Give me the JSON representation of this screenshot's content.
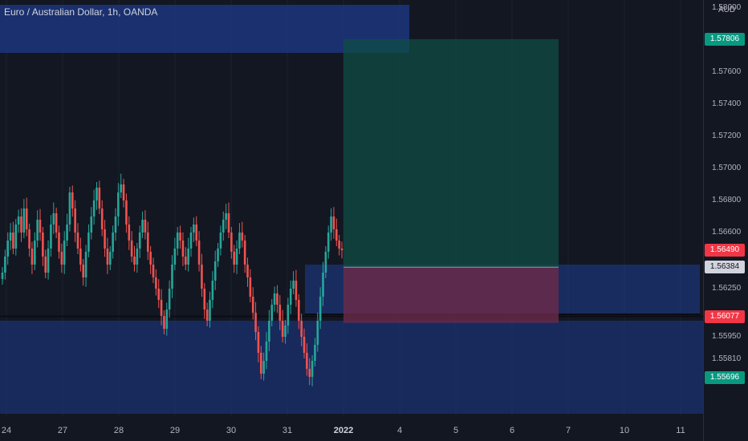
{
  "header": {
    "title": "Euro / Australian Dollar, 1h, OANDA"
  },
  "axis": {
    "unit": "AUD",
    "y_ticks": [
      "1.58000",
      "1.57600",
      "1.57400",
      "1.57200",
      "1.57000",
      "1.56800",
      "1.56600",
      "1.56250",
      "1.55950",
      "1.55810",
      "1.55696"
    ],
    "x_ticks": [
      "24",
      "27",
      "28",
      "29",
      "30",
      "31",
      "2022",
      "4",
      "5",
      "6",
      "7",
      "10",
      "11"
    ]
  },
  "price_labels": {
    "target": {
      "value": "1.57806",
      "color": "#089981"
    },
    "current": {
      "value": "1.56490",
      "color": "#f23645"
    },
    "entry": {
      "value": "1.56384",
      "color": "#d1d4dc"
    },
    "stop": {
      "value": "1.56077",
      "color": "#f23645"
    },
    "low": {
      "value": "1.55696",
      "color": "#089981"
    }
  },
  "colors": {
    "up": "#26a69a",
    "down": "#ef5350",
    "zone": "#1e3a8a",
    "profit": "#0f4c44",
    "loss": "#6b2a48"
  },
  "chart_data": {
    "type": "candlestick",
    "symbol": "EURAUD",
    "interval": "1h",
    "y_range": [
      1.5545,
      1.5805
    ],
    "price_levels": {
      "target": 1.57806,
      "current": 1.5649,
      "entry": 1.56384,
      "stop": 1.56077,
      "low": 1.55696
    },
    "zones": [
      {
        "kind": "supply",
        "y_top": 1.5802,
        "y_bottom": 1.5772
      },
      {
        "kind": "demand",
        "y_top": 1.564,
        "y_bottom": 1.5609
      },
      {
        "kind": "demand",
        "y_top": 1.5605,
        "y_bottom": 1.5547
      }
    ],
    "closes": [
      1.5635,
      1.5645,
      1.5655,
      1.566,
      1.565,
      1.5665,
      1.567,
      1.566,
      1.5675,
      1.5662,
      1.565,
      1.564,
      1.5655,
      1.5668,
      1.566,
      1.5645,
      1.5635,
      1.565,
      1.5665,
      1.5672,
      1.566,
      1.5648,
      1.564,
      1.5655,
      1.5665,
      1.5685,
      1.5675,
      1.566,
      1.565,
      1.564,
      1.5632,
      1.5648,
      1.566,
      1.567,
      1.568,
      1.5688,
      1.5675,
      1.5662,
      1.565,
      1.564,
      1.5648,
      1.566,
      1.567,
      1.5685,
      1.569,
      1.568,
      1.5665,
      1.5655,
      1.5645,
      1.564,
      1.565,
      1.566,
      1.5668,
      1.566,
      1.5648,
      1.564,
      1.5632,
      1.5625,
      1.5618,
      1.5608,
      1.56,
      1.5612,
      1.5625,
      1.564,
      1.565,
      1.566,
      1.5655,
      1.5645,
      1.564,
      1.565,
      1.566,
      1.5665,
      1.5655,
      1.564,
      1.5625,
      1.5612,
      1.5605,
      1.5618,
      1.563,
      1.5642,
      1.565,
      1.566,
      1.5668,
      1.5672,
      1.566,
      1.5648,
      1.564,
      1.565,
      1.566,
      1.5655,
      1.564,
      1.5632,
      1.562,
      1.561,
      1.5598,
      1.5585,
      1.5572,
      1.558,
      1.5592,
      1.5605,
      1.5615,
      1.5622,
      1.5615,
      1.5605,
      1.5595,
      1.5602,
      1.5615,
      1.5625,
      1.563,
      1.5618,
      1.5605,
      1.5595,
      1.5585,
      1.5575,
      1.557,
      1.558,
      1.559,
      1.5605,
      1.562,
      1.5635,
      1.5648,
      1.566,
      1.567,
      1.5662,
      1.5655,
      1.565,
      1.5649
    ]
  }
}
